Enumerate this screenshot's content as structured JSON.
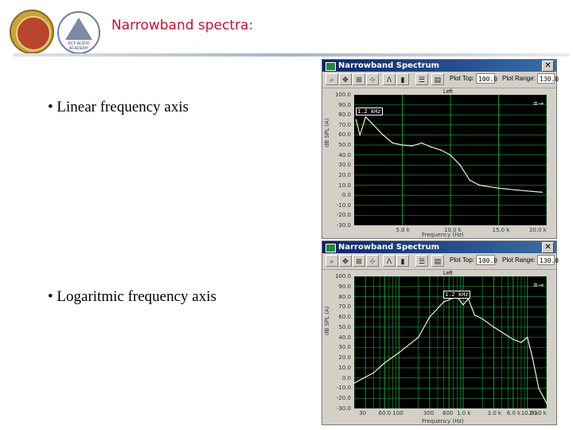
{
  "slide": {
    "title": "Narrowband spectra:",
    "bullet_linear": "• Linear frequency axis",
    "bullet_log": "• Logaritmic frequency axis"
  },
  "logos": {
    "logo2_text": "RCF AUDIO ACADEMY"
  },
  "window_linear": {
    "title": "Narrowband Spectrum",
    "close_glyph": "✕",
    "plot_top_label": "Plot Top:",
    "plot_top_value": "100.0",
    "plot_range_label": "Plot Range:",
    "plot_range_value": "130.0",
    "channel_label": "Left",
    "marker": "1.2 kHz",
    "y_axis_label": "dB SPL (A)",
    "x_axis_label": "Frequency (Hz)",
    "y_ticks": [
      "100.0",
      "90.0",
      "80.0",
      "70.0",
      "60.0",
      "50.0",
      "40.0",
      "30.0",
      "20.0",
      "10.0",
      "0.0",
      "-10.0",
      "-20.0",
      "-30.0"
    ],
    "x_ticks": [
      "5.0 k",
      "10.0 k",
      "15.0 k",
      "20.0 k"
    ]
  },
  "window_log": {
    "title": "Narrowband Spectrum",
    "close_glyph": "✕",
    "plot_top_label": "Plot Top:",
    "plot_top_value": "100.0",
    "plot_range_label": "Plot Range:",
    "plot_range_value": "130.0",
    "channel_label": "Left",
    "marker": "1.2 kHz",
    "y_axis_label": "dB SPL (A)",
    "x_axis_label": "Frequency (Hz)",
    "y_ticks": [
      "100.0",
      "90.0",
      "80.0",
      "70.0",
      "60.0",
      "50.0",
      "40.0",
      "30.0",
      "20.0",
      "10.0",
      "0.0",
      "-10.0",
      "-20.0",
      "-30.0"
    ],
    "x_ticks": [
      "30",
      "60.0",
      "100",
      "300",
      "600",
      "1.0 k",
      "3.0 k",
      "6.0 k",
      "10.0 k",
      "20.0 k"
    ]
  },
  "colors": {
    "title_red": "#c8102e",
    "plot_bg": "#000000",
    "grid_green": "#1aa33a",
    "trace": "#f2f2c8"
  },
  "icons": [
    "zoom-icon",
    "pan-icon",
    "autoscale-icon",
    "cursor-icon",
    "peak-icon",
    "bars-icon",
    "settings-icon",
    "table-icon"
  ],
  "chart_data": [
    {
      "type": "line",
      "name_hint": "linear",
      "xlabel": "Frequency (Hz)",
      "ylabel": "dB SPL (A)",
      "xlim": [
        0,
        20000
      ],
      "ylim": [
        -30,
        100
      ],
      "x": [
        200,
        600,
        1200,
        2000,
        3000,
        4000,
        5000,
        6000,
        7000,
        8000,
        9000,
        10000,
        11000,
        12000,
        13000,
        15000,
        17000,
        19500
      ],
      "y": [
        75,
        60,
        78,
        70,
        60,
        52,
        50,
        49,
        52,
        48,
        45,
        40,
        30,
        15,
        10,
        7,
        5,
        3
      ]
    },
    {
      "type": "line",
      "name_hint": "log",
      "xlabel": "Frequency (Hz)",
      "ylabel": "dB SPL (A)",
      "xlim": [
        20,
        20000
      ],
      "ylim": [
        -30,
        100
      ],
      "x": [
        20,
        40,
        60,
        100,
        200,
        300,
        500,
        800,
        1000,
        1200,
        1500,
        2000,
        3000,
        4000,
        6000,
        8000,
        10000,
        12000,
        15000,
        20000
      ],
      "y": [
        -5,
        5,
        15,
        25,
        40,
        60,
        75,
        80,
        72,
        78,
        62,
        58,
        50,
        45,
        38,
        35,
        40,
        20,
        -10,
        -25
      ]
    }
  ]
}
